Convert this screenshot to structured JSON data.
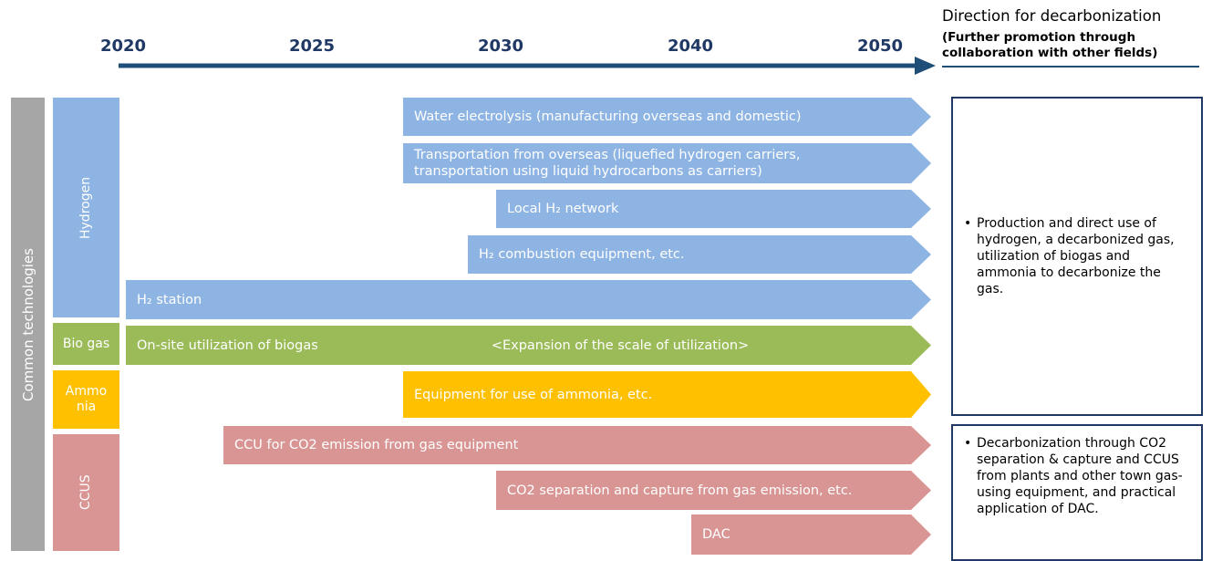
{
  "timeline": {
    "years": [
      "2020",
      "2025",
      "2030",
      "2040",
      "2050"
    ]
  },
  "header": {
    "title": "Direction for decarbonization",
    "subtitle": "(Further promotion through collaboration with other fields)"
  },
  "side_label": "Common technologies",
  "categories": [
    "Hydrogen",
    "Bio gas",
    "Ammonia",
    "CCUS"
  ],
  "items": [
    {
      "labels": [
        "Water electrolysis (manufacturing overseas and domestic)"
      ]
    },
    {
      "labels": [
        "Transportation from overseas (liquefied hydrogen carriers, transportation using liquid hydrocarbons as carriers)"
      ]
    },
    {
      "labels": [
        "Local H₂ network"
      ]
    },
    {
      "labels": [
        "H₂ combustion equipment, etc."
      ]
    },
    {
      "labels": [
        "H₂ station"
      ]
    },
    {
      "labels": [
        "On-site utilization of biogas",
        "<Expansion of the scale of utilization>"
      ]
    },
    {
      "labels": [
        "Equipment for use of ammonia, etc."
      ]
    },
    {
      "labels": [
        "CCU for CO2 emission from gas equipment"
      ]
    },
    {
      "labels": [
        "CO2 separation and capture from gas emission, etc."
      ]
    },
    {
      "labels": [
        "DAC"
      ]
    }
  ],
  "notes": [
    "Production and direct use of hydrogen, a decarbonized gas, utilization of biogas and ammonia to decarbonize the gas.",
    "Decarbonization through CO2 separation & capture and CCUS from plants and other town gas-using equipment, and practical application of DAC."
  ]
}
